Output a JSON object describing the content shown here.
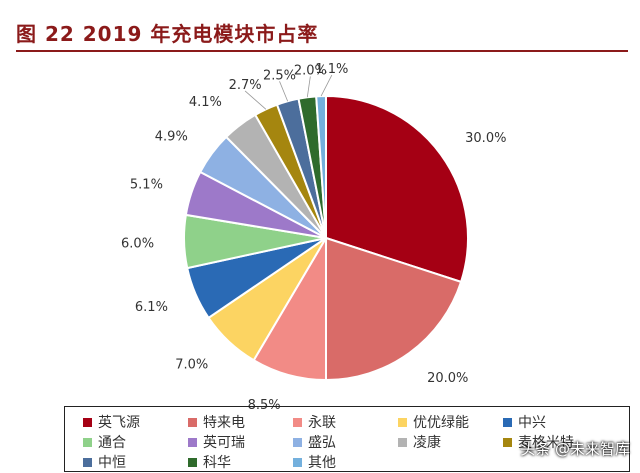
{
  "header": {
    "title": "图 22 2019 年充电模块市占率"
  },
  "chart_data": {
    "type": "pie",
    "title": "图 22 2019 年充电模块市占率",
    "start_angle_deg": 0,
    "direction": "clockwise",
    "slices": [
      {
        "label": "英飞源",
        "value": 30.0,
        "display": "30.0%",
        "color": "#a50014"
      },
      {
        "label": "特来电",
        "value": 20.0,
        "display": "20.0%",
        "color": "#d96b68"
      },
      {
        "label": "永联",
        "value": 8.5,
        "display": "8.5%",
        "color": "#f28b86"
      },
      {
        "label": "优优绿能",
        "value": 7.0,
        "display": "7.0%",
        "color": "#fcd462"
      },
      {
        "label": "中兴",
        "value": 6.1,
        "display": "6.1%",
        "color": "#2a6ab5"
      },
      {
        "label": "通合",
        "value": 6.0,
        "display": "6.0%",
        "color": "#8fd18a"
      },
      {
        "label": "英可瑞",
        "value": 5.1,
        "display": "5.1%",
        "color": "#9d79c9"
      },
      {
        "label": "盛弘",
        "value": 4.9,
        "display": "4.9%",
        "color": "#8eb1e3"
      },
      {
        "label": "凌康",
        "value": 4.1,
        "display": "4.1%",
        "color": "#b3b3b3"
      },
      {
        "label": "麦格米特",
        "value": 2.7,
        "display": "2.7%",
        "color": "#a5860f"
      },
      {
        "label": "中恒",
        "value": 2.5,
        "display": "2.5%",
        "color": "#4c6e9c"
      },
      {
        "label": "科华",
        "value": 2.0,
        "display": "2.0%",
        "color": "#2f6b2c"
      },
      {
        "label": "其他",
        "value": 1.1,
        "display": "1.1%",
        "color": "#74b0dd"
      }
    ],
    "legend_position": "bottom"
  },
  "watermark": {
    "text": "头条 @未来智库"
  }
}
